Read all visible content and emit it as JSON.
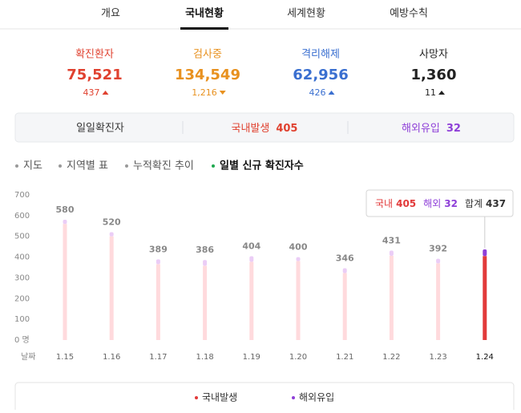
{
  "tabs": [
    "개요",
    "국내현황",
    "세계현황",
    "예방수칙"
  ],
  "active_tab": 1,
  "stats": [
    {
      "label": "확진환자",
      "value": "75,521",
      "change": "437",
      "color": "#e0412f",
      "direction": "up"
    },
    {
      "label": "검사중",
      "value": "134,549",
      "change": "1,216",
      "color": "#e8911f",
      "direction": "down"
    },
    {
      "label": "격리해제",
      "value": "62,956",
      "change": "426",
      "color": "#3a6fd0",
      "direction": "up"
    },
    {
      "label": "사망자",
      "value": "1,360",
      "change": "11",
      "color": "#222222",
      "direction": "up"
    }
  ],
  "daily": {
    "label": "일일확진자",
    "items": [
      {
        "label": "국내발생",
        "value": "405",
        "color": "#e0412f"
      },
      {
        "label": "해외유입",
        "value": "32",
        "color": "#8e3fd8"
      }
    ]
  },
  "subtabs": [
    "지도",
    "지역별 표",
    "누적확진 추이",
    "일별 신규 확진자수"
  ],
  "active_subtab": 3,
  "chart_data": {
    "type": "bar",
    "stacked": true,
    "x_label": "날짜",
    "categories": [
      "1.15",
      "1.16",
      "1.17",
      "1.18",
      "1.19",
      "1.20",
      "1.21",
      "1.22",
      "1.23",
      "1.24"
    ],
    "series": [
      {
        "name": "국내발생",
        "color": "#ffdadd",
        "highlight_color": "#e23a3a",
        "values": [
          560,
          500,
          366,
          358,
          377,
          381,
          323,
          406,
          370,
          405
        ]
      },
      {
        "name": "해외유입",
        "color": "#ebcdf6",
        "highlight_color": "#8e3fd8",
        "values": [
          20,
          20,
          23,
          28,
          27,
          19,
          23,
          25,
          22,
          32
        ]
      }
    ],
    "totals": [
      580,
      520,
      389,
      386,
      404,
      400,
      346,
      431,
      392,
      437
    ],
    "ylim": [
      0,
      700
    ],
    "yticks": [
      {
        "value": 0,
        "label": "0 명"
      },
      100,
      200,
      300,
      400,
      500,
      600,
      700
    ],
    "tooltip": {
      "index": 9,
      "labels": [
        "국내",
        "해외",
        "합계"
      ]
    }
  }
}
